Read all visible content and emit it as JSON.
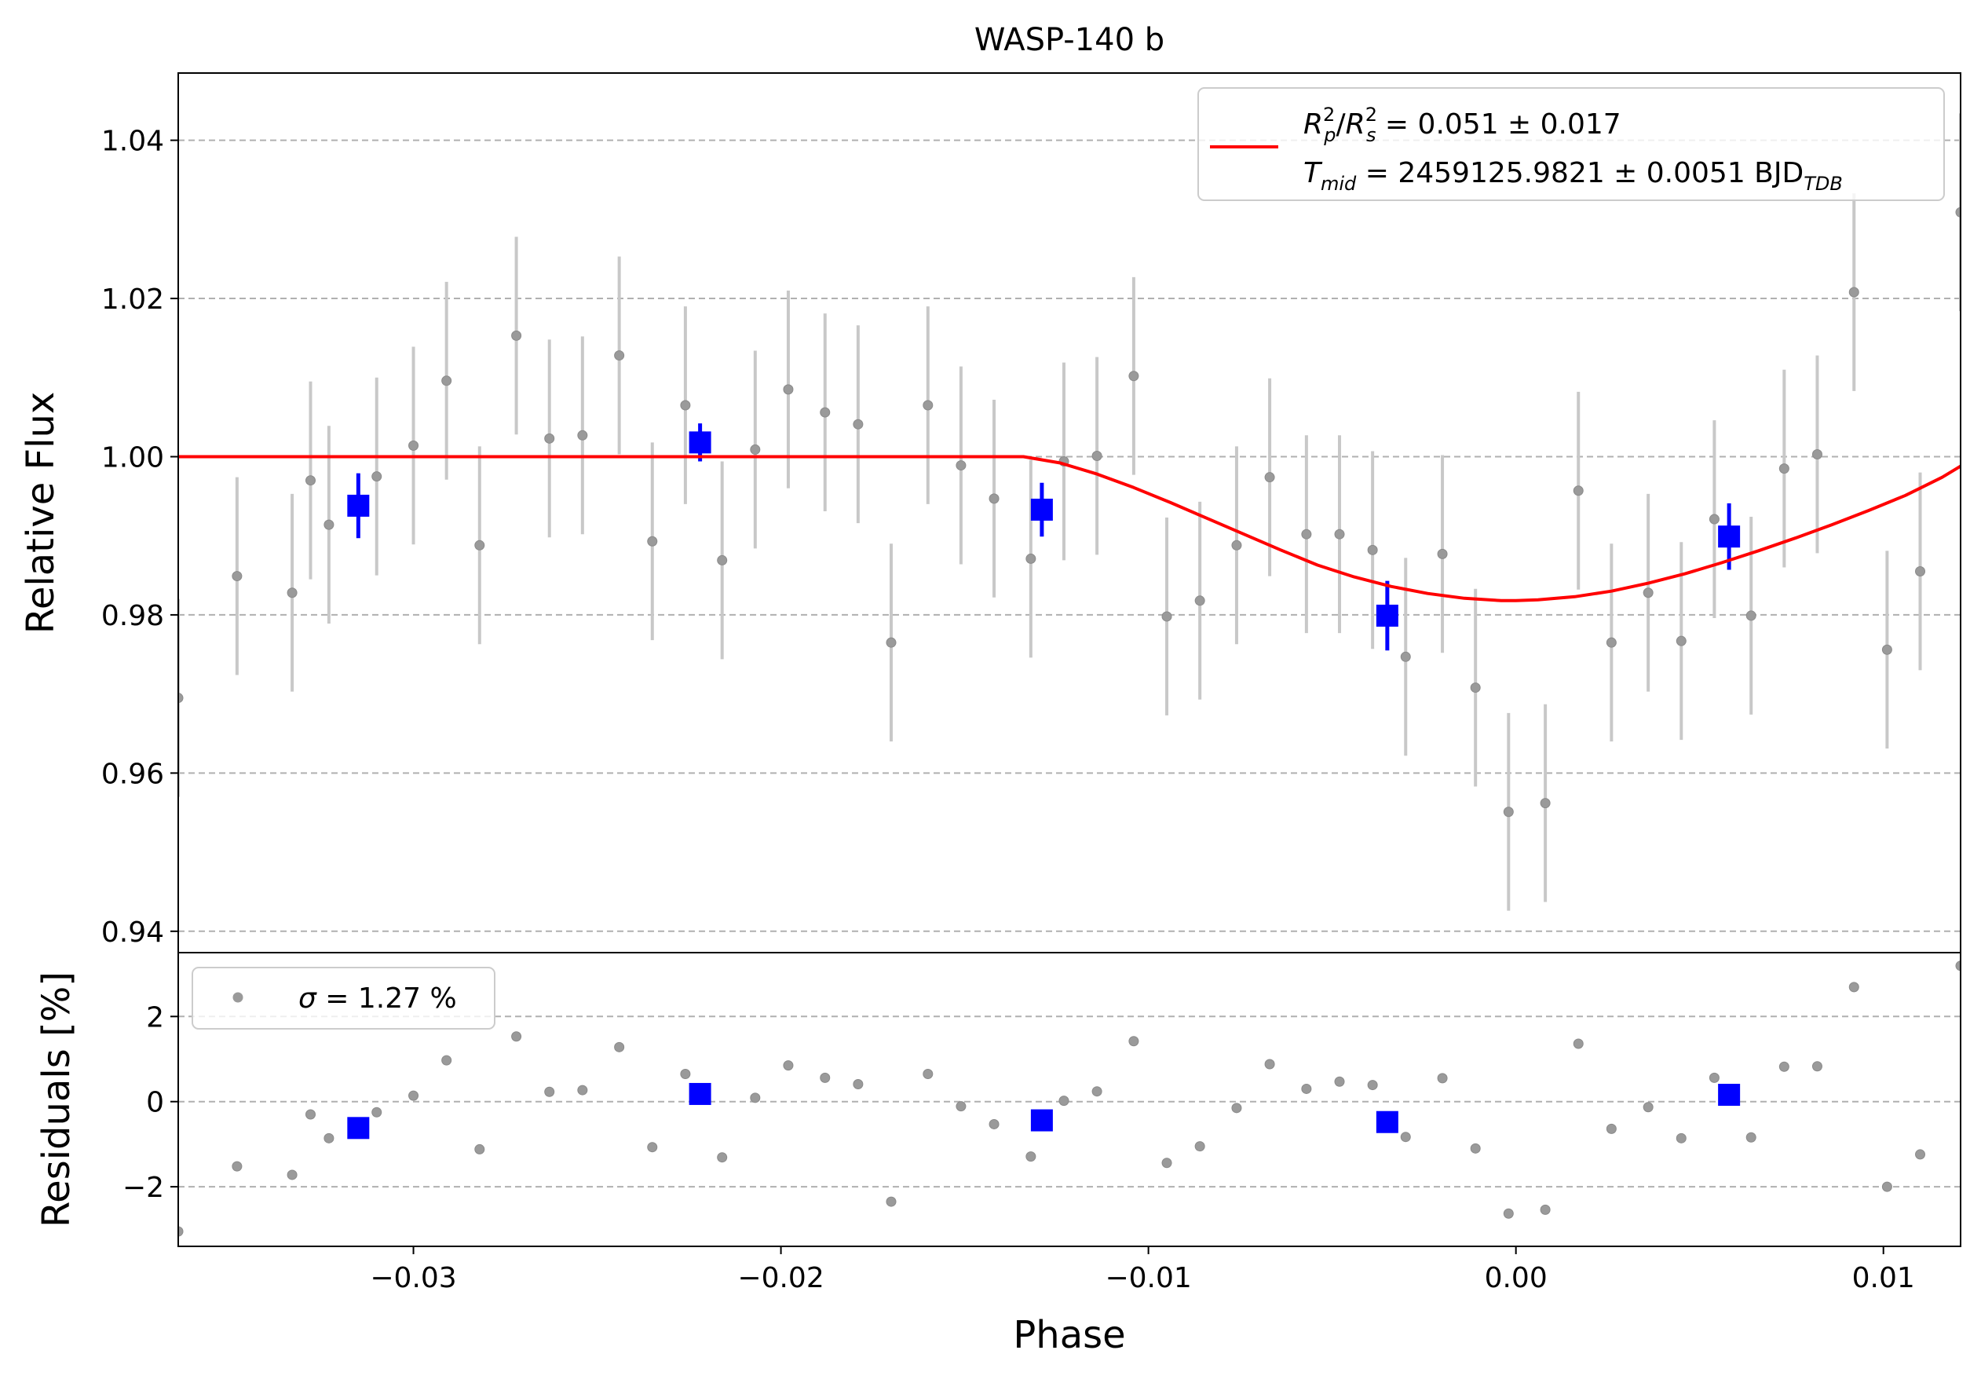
{
  "chart_data": [
    {
      "panel": "main",
      "type": "scatter",
      "title": "WASP-140 b",
      "xlabel": "",
      "ylabel": "Relative Flux",
      "xlim": [
        -0.0364,
        0.0121
      ],
      "ylim": [
        0.9373,
        1.0485
      ],
      "y_ticks": [
        0.94,
        0.96,
        0.98,
        1.0,
        1.02,
        1.04
      ],
      "y_tick_labels": [
        "0.94",
        "0.96",
        "0.98",
        "1.00",
        "1.02",
        "1.04"
      ],
      "grid": "horizontal dashed",
      "legend_position": "top-right",
      "legend": {
        "rp_line": "R_p²/R_s² = 0.051 ± 0.017",
        "rp_line_parts": {
          "r1": "R",
          "r1_sup": "2",
          "r1_sub": "p",
          "slash": "/",
          "r2": "R",
          "r2_sup": "2",
          "r2_sub": "s",
          "value": " = 0.051 ± 0.017"
        },
        "tmid_line": "T_mid = 2459125.9821 ± 0.0051 BJD_TDB",
        "tmid_line_parts": {
          "t": "T",
          "t_sub": "mid",
          "value": " = 2459125.9821 ± 0.0051 BJD",
          "unit_sub": "TDB"
        }
      },
      "colors": {
        "data": "#9a9a9a",
        "errorbar": "#c8c8c8",
        "binned": "#0000ff",
        "model": "#ff0000",
        "grid": "#b0b0b0"
      },
      "model": {
        "name": "transit model",
        "x": [
          -0.0364,
          -0.0134,
          -0.0124,
          -0.0114,
          -0.0104,
          -0.0094,
          -0.0084,
          -0.0074,
          -0.0064,
          -0.0054,
          -0.0044,
          -0.0034,
          -0.0024,
          -0.0014,
          -0.0004,
          0.0,
          0.0006,
          0.0016,
          0.0026,
          0.0036,
          0.0046,
          0.0056,
          0.0066,
          0.0076,
          0.0086,
          0.0096,
          0.0106,
          0.0116,
          0.0121
        ],
        "y": [
          1.0,
          1.0,
          0.9992,
          0.9978,
          0.9961,
          0.9942,
          0.9922,
          0.9902,
          0.9882,
          0.9863,
          0.9848,
          0.9836,
          0.9827,
          0.9821,
          0.9818,
          0.9818,
          0.9819,
          0.9823,
          0.983,
          0.984,
          0.9852,
          0.9866,
          0.9881,
          0.9897,
          0.9914,
          0.9932,
          0.9951,
          0.9974,
          0.9988
        ]
      },
      "series": [
        {
          "name": "data",
          "x": [
            -0.0364,
            -0.0348,
            -0.0333,
            -0.0328,
            -0.0323,
            -0.031,
            -0.03,
            -0.0291,
            -0.0282,
            -0.0272,
            -0.0263,
            -0.0254,
            -0.0244,
            -0.0235,
            -0.0226,
            -0.0216,
            -0.0207,
            -0.0198,
            -0.0188,
            -0.0179,
            -0.017,
            -0.016,
            -0.0151,
            -0.0142,
            -0.0132,
            -0.0123,
            -0.0114,
            -0.0104,
            -0.0095,
            -0.0086,
            -0.0076,
            -0.0067,
            -0.0057,
            -0.0048,
            -0.0039,
            -0.003,
            -0.002,
            -0.0011,
            -0.0002,
            0.0008,
            0.0017,
            0.0026,
            0.0036,
            0.0045,
            0.0054,
            0.0064,
            0.0073,
            0.0082,
            0.0092,
            0.0101,
            0.011,
            0.0121
          ],
          "y": [
            0.9695,
            0.9849,
            0.9828,
            0.997,
            0.9914,
            0.9975,
            1.0014,
            1.0096,
            0.9888,
            1.0153,
            1.0023,
            1.0027,
            1.0128,
            0.9893,
            1.0065,
            0.9869,
            1.0009,
            1.0085,
            1.0056,
            1.0041,
            0.9765,
            1.0065,
            0.9989,
            0.9947,
            0.9871,
            0.9994,
            1.0001,
            1.0102,
            0.9798,
            0.9818,
            0.9888,
            0.9974,
            0.9902,
            0.9902,
            0.9882,
            0.9747,
            0.9877,
            0.9708,
            0.9551,
            0.9562,
            0.9957,
            0.9765,
            0.9828,
            0.9767,
            0.9921,
            0.9799,
            0.9985,
            1.0003,
            1.0208,
            0.9756,
            0.9855,
            1.0309
          ],
          "yerr": 0.0125
        },
        {
          "name": "binned",
          "x": [
            -0.0315,
            -0.0222,
            -0.0129,
            -0.0035,
            0.0058
          ],
          "y": [
            0.9938,
            1.0018,
            0.9933,
            0.9799,
            0.9899
          ],
          "yerr": [
            0.0041,
            0.0024,
            0.0034,
            0.0044,
            0.0042
          ]
        }
      ]
    },
    {
      "panel": "residuals",
      "type": "scatter",
      "xlabel": "Phase",
      "ylabel": "Residuals [%]",
      "xlim": [
        -0.0364,
        0.0121
      ],
      "ylim": [
        -3.4,
        3.5
      ],
      "x_ticks": [
        -0.03,
        -0.02,
        -0.01,
        0.0,
        0.01
      ],
      "x_tick_labels": [
        "−0.03",
        "−0.02",
        "−0.01",
        "0.00",
        "0.01"
      ],
      "y_ticks": [
        -2,
        0,
        2
      ],
      "y_tick_labels": [
        "−2",
        "0",
        "2"
      ],
      "grid": "horizontal dashed",
      "legend_position": "top-left",
      "legend": {
        "sigma_line": "σ = 1.27 %",
        "sigma_parts": {
          "symbol": "σ",
          "value": " = 1.27 %"
        }
      },
      "series": [
        {
          "name": "residuals",
          "x": [
            -0.0364,
            -0.0348,
            -0.0333,
            -0.0328,
            -0.0323,
            -0.031,
            -0.03,
            -0.0291,
            -0.0282,
            -0.0272,
            -0.0263,
            -0.0254,
            -0.0244,
            -0.0235,
            -0.0226,
            -0.0216,
            -0.0207,
            -0.0198,
            -0.0188,
            -0.0179,
            -0.017,
            -0.016,
            -0.0151,
            -0.0142,
            -0.0132,
            -0.0123,
            -0.0114,
            -0.0104,
            -0.0095,
            -0.0086,
            -0.0076,
            -0.0067,
            -0.0057,
            -0.0048,
            -0.0039,
            -0.003,
            -0.002,
            -0.0011,
            -0.0002,
            0.0008,
            0.0017,
            0.0026,
            0.0036,
            0.0045,
            0.0054,
            0.0064,
            0.0073,
            0.0082,
            0.0092,
            0.0101,
            0.011,
            0.0121
          ],
          "y": [
            -3.05,
            -1.52,
            -1.72,
            -0.3,
            -0.86,
            -0.25,
            0.14,
            0.97,
            -1.12,
            1.53,
            0.23,
            0.27,
            1.28,
            -1.07,
            0.65,
            -1.31,
            0.09,
            0.85,
            0.56,
            0.41,
            -2.35,
            0.65,
            -0.11,
            -0.53,
            -1.29,
            0.02,
            0.24,
            1.42,
            -1.44,
            -1.05,
            -0.15,
            0.88,
            0.3,
            0.47,
            0.39,
            -0.83,
            0.55,
            -1.1,
            -2.63,
            -2.54,
            1.36,
            -0.64,
            -0.13,
            -0.86,
            0.56,
            -0.84,
            0.82,
            0.83,
            2.69,
            -2.0,
            -1.24,
            3.19
          ]
        },
        {
          "name": "binned",
          "x": [
            -0.0315,
            -0.0222,
            -0.0129,
            -0.0035,
            0.0058
          ],
          "y": [
            -0.62,
            0.18,
            -0.44,
            -0.48,
            0.16
          ]
        }
      ]
    }
  ]
}
